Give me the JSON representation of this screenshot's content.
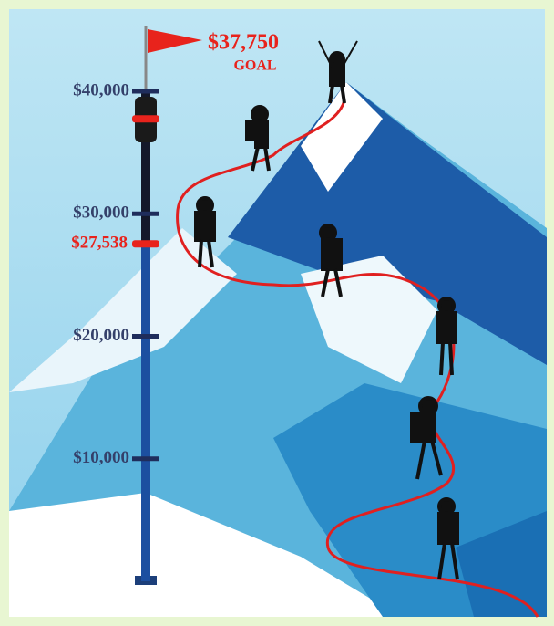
{
  "chart_data": {
    "type": "progress",
    "values": [
      27538
    ],
    "value_labels": [
      "$27,538"
    ],
    "goal": 37750,
    "goal_label": "$37,750",
    "goal_text": "GOAL",
    "ylim": [
      0,
      40000
    ],
    "yticks": [
      {
        "value": 10000,
        "label": "$10,000"
      },
      {
        "value": 20000,
        "label": "$20,000"
      },
      {
        "value": 30000,
        "label": "$30,000"
      },
      {
        "value": 40000,
        "label": "$40,000"
      }
    ],
    "color": "#e8231c",
    "pole_color": "#1c4fa0"
  }
}
